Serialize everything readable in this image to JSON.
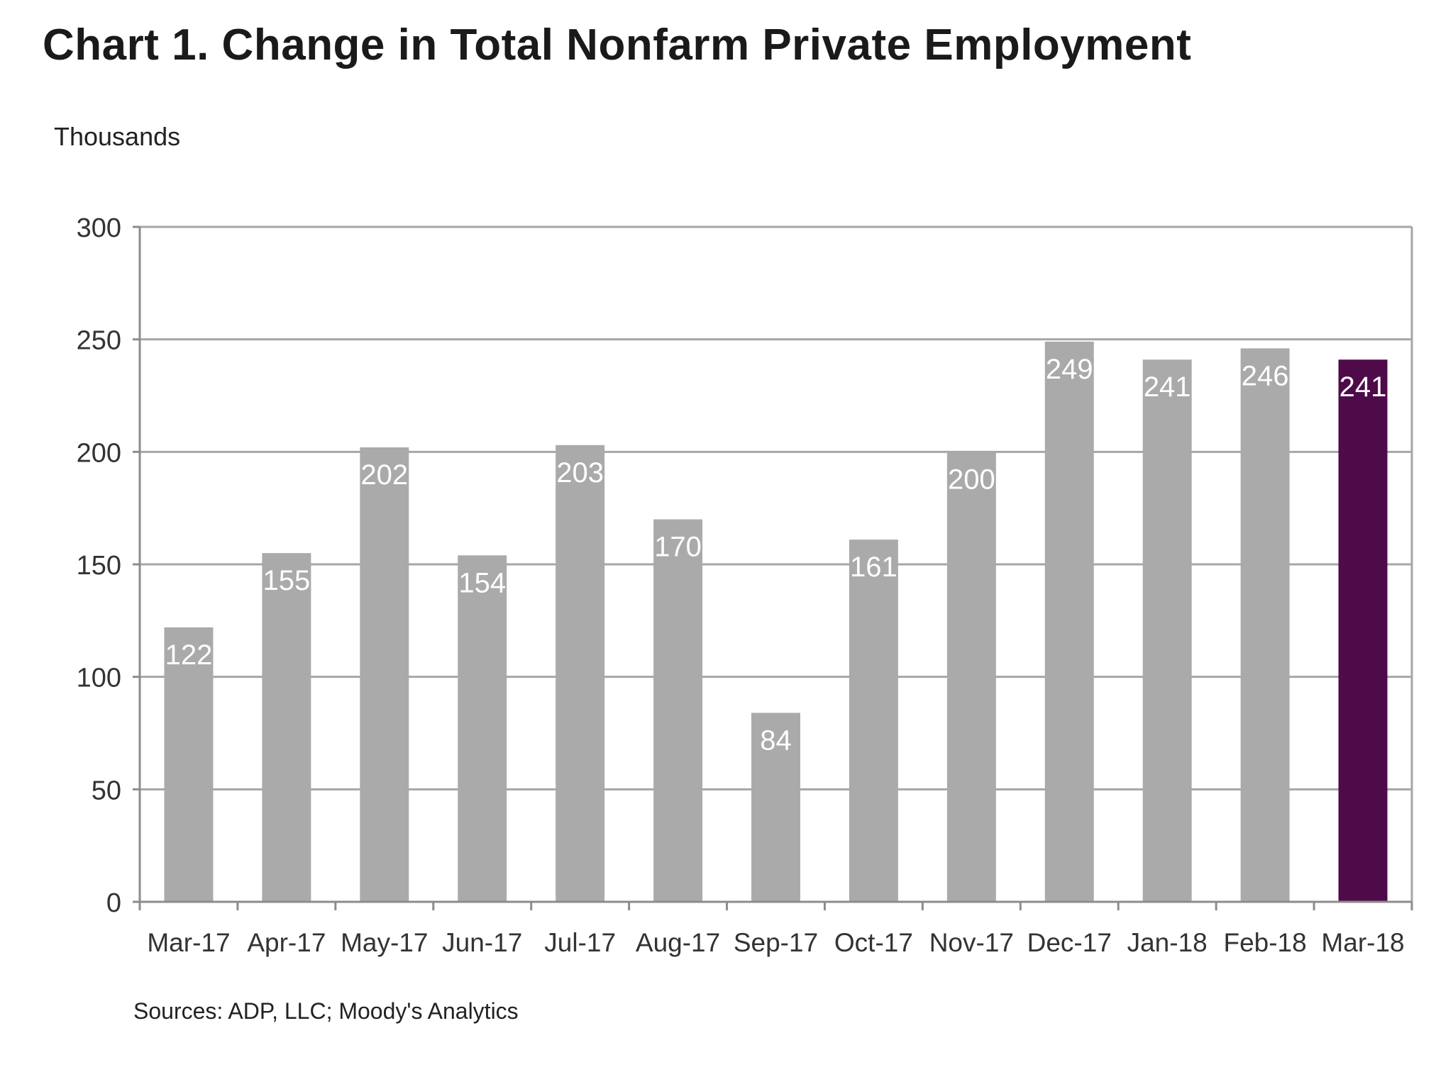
{
  "title": "Chart 1. Change in Total Nonfarm Private Employment",
  "source_note": "Sources: ADP, LLC; Moody's Analytics",
  "chart_data": {
    "type": "bar",
    "title": "Chart 1. Change in Total Nonfarm Private Employment",
    "ylabel": "Thousands",
    "xlabel": "",
    "categories": [
      "Mar-17",
      "Apr-17",
      "May-17",
      "Jun-17",
      "Jul-17",
      "Aug-17",
      "Sep-17",
      "Oct-17",
      "Nov-17",
      "Dec-17",
      "Jan-18",
      "Feb-18",
      "Mar-18"
    ],
    "values": [
      122,
      155,
      202,
      154,
      203,
      170,
      84,
      161,
      200,
      249,
      241,
      246,
      241
    ],
    "data_labels": [
      "122",
      "155",
      "202",
      "154",
      "203",
      "170",
      "84",
      "161",
      "200",
      "249",
      "241",
      "246",
      "241"
    ],
    "ylim": [
      0,
      300
    ],
    "yticks": [
      0,
      50,
      100,
      150,
      200,
      250,
      300
    ],
    "grid": true,
    "legend": "none",
    "colors": {
      "bar": "#aaaaaa",
      "highlight_bar": "#4f0a4a",
      "highlight_index": 12,
      "grid": "#a6a6a6",
      "axis": "#8c8c8c",
      "data_label": "#ffffff",
      "tick_label": "#333333"
    }
  }
}
